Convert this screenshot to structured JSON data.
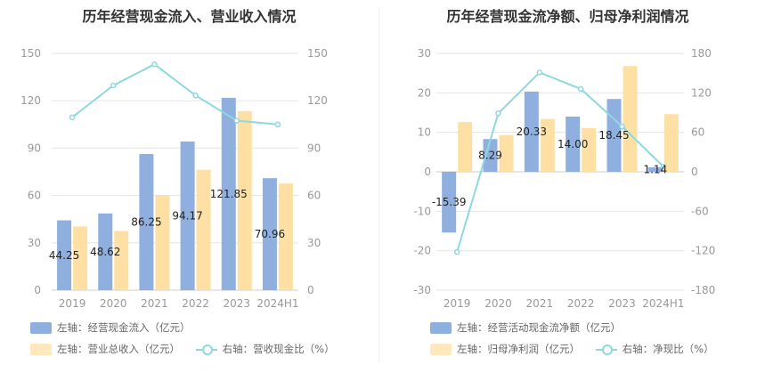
{
  "colors": {
    "blue": "#8fafdf",
    "orange": "#fedea0",
    "line": "#8ed8df",
    "grid": "#e6e6e6",
    "axis_text": "#999999"
  },
  "chart_data": [
    {
      "type": "bar",
      "title": "历年经营现金流入、营业收入情况",
      "categories": [
        "2019",
        "2020",
        "2021",
        "2022",
        "2023",
        "2024H1"
      ],
      "y_left": {
        "ticks": [
          "0",
          "30",
          "60",
          "90",
          "120",
          "150"
        ],
        "ylim": [
          0,
          150
        ]
      },
      "y_right": {
        "ticks": [
          "0",
          "30",
          "60",
          "90",
          "120",
          "150"
        ],
        "ylim": [
          0,
          150
        ]
      },
      "series": [
        {
          "name": "左轴：经营现金流入（亿元）",
          "kind": "bar",
          "axis": "left",
          "color": "#8fafdf",
          "values": [
            44.25,
            48.62,
            86.25,
            94.17,
            121.85,
            70.96
          ],
          "labels": [
            "44.25",
            "48.62",
            "86.25",
            "94.17",
            "121.85",
            "70.96"
          ]
        },
        {
          "name": "左轴：营业总收入（亿元）",
          "kind": "bar",
          "axis": "left",
          "color": "#fedea0",
          "values": [
            40.4,
            37.5,
            60.3,
            76.3,
            113.5,
            67.6
          ]
        },
        {
          "name": "右轴：营收现金比（%）",
          "kind": "line",
          "axis": "right",
          "color": "#8ed8df",
          "values": [
            109.5,
            129.7,
            143.1,
            123.4,
            107.4,
            105.0
          ]
        }
      ],
      "grid": true,
      "legend": "bottom"
    },
    {
      "type": "bar",
      "title": "历年经营现金流净额、归母净利润情况",
      "categories": [
        "2019",
        "2020",
        "2021",
        "2022",
        "2023",
        "2024H1"
      ],
      "y_left": {
        "ticks": [
          "-30",
          "-20",
          "-10",
          "0",
          "10",
          "20",
          "30"
        ],
        "ylim": [
          -30,
          30
        ]
      },
      "y_right": {
        "ticks": [
          "-180",
          "-120",
          "-60",
          "0",
          "60",
          "120",
          "180"
        ],
        "ylim": [
          -180,
          180
        ]
      },
      "series": [
        {
          "name": "左轴：经营活动现金流净额（亿元）",
          "kind": "bar",
          "axis": "left",
          "color": "#8fafdf",
          "values": [
            -15.39,
            8.29,
            20.33,
            14.0,
            18.45,
            1.14
          ],
          "labels": [
            "-15.39",
            "8.29",
            "20.33",
            "14.00",
            "18.45",
            "1.14"
          ]
        },
        {
          "name": "左轴：归母净利润（亿元）",
          "kind": "bar",
          "axis": "left",
          "color": "#fedea0",
          "values": [
            12.6,
            9.3,
            13.4,
            11.1,
            26.8,
            14.6
          ]
        },
        {
          "name": "右轴：净现比（%）",
          "kind": "line",
          "axis": "right",
          "color": "#8ed8df",
          "values": [
            -122.0,
            89.0,
            151.0,
            126.0,
            69.0,
            8.0
          ]
        }
      ],
      "grid": true,
      "legend": "bottom"
    }
  ]
}
